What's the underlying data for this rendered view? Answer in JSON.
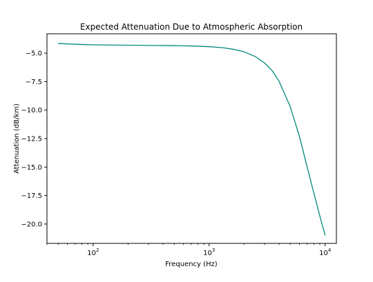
{
  "chart_data": {
    "type": "line",
    "title": "Expected Attenuation Due to Atmospheric Absorption",
    "xlabel": "Frequency (Hz)",
    "ylabel": "Attenuation (dB/km)",
    "xscale": "log",
    "xlim": [
      40,
      12500
    ],
    "ylim": [
      -21.7,
      -3.3
    ],
    "grid": false,
    "x_ticks": [
      {
        "value": 100,
        "label": "10",
        "exp": "2"
      },
      {
        "value": 1000,
        "label": "10",
        "exp": "3"
      },
      {
        "value": 10000,
        "label": "10",
        "exp": "4"
      }
    ],
    "y_ticks": [
      {
        "value": -5.0,
        "label": "−5.0"
      },
      {
        "value": -7.5,
        "label": "−7.5"
      },
      {
        "value": -10.0,
        "label": "−10.0"
      },
      {
        "value": -12.5,
        "label": "−12.5"
      },
      {
        "value": -15.0,
        "label": "−15.0"
      },
      {
        "value": -17.5,
        "label": "−17.5"
      },
      {
        "value": -20.0,
        "label": "−20.0"
      }
    ],
    "series": [
      {
        "color": "#00897b",
        "x": [
          50,
          70,
          100,
          150,
          200,
          300,
          500,
          700,
          1000,
          1300,
          1600,
          2000,
          2500,
          3000,
          3500,
          4000,
          5000,
          6000,
          7000,
          8000,
          9000,
          10000
        ],
        "y": [
          -4.15,
          -4.22,
          -4.27,
          -4.29,
          -4.3,
          -4.32,
          -4.34,
          -4.37,
          -4.43,
          -4.52,
          -4.65,
          -4.88,
          -5.3,
          -5.85,
          -6.55,
          -7.45,
          -9.7,
          -12.3,
          -15.0,
          -17.3,
          -19.3,
          -21.0
        ]
      }
    ]
  }
}
